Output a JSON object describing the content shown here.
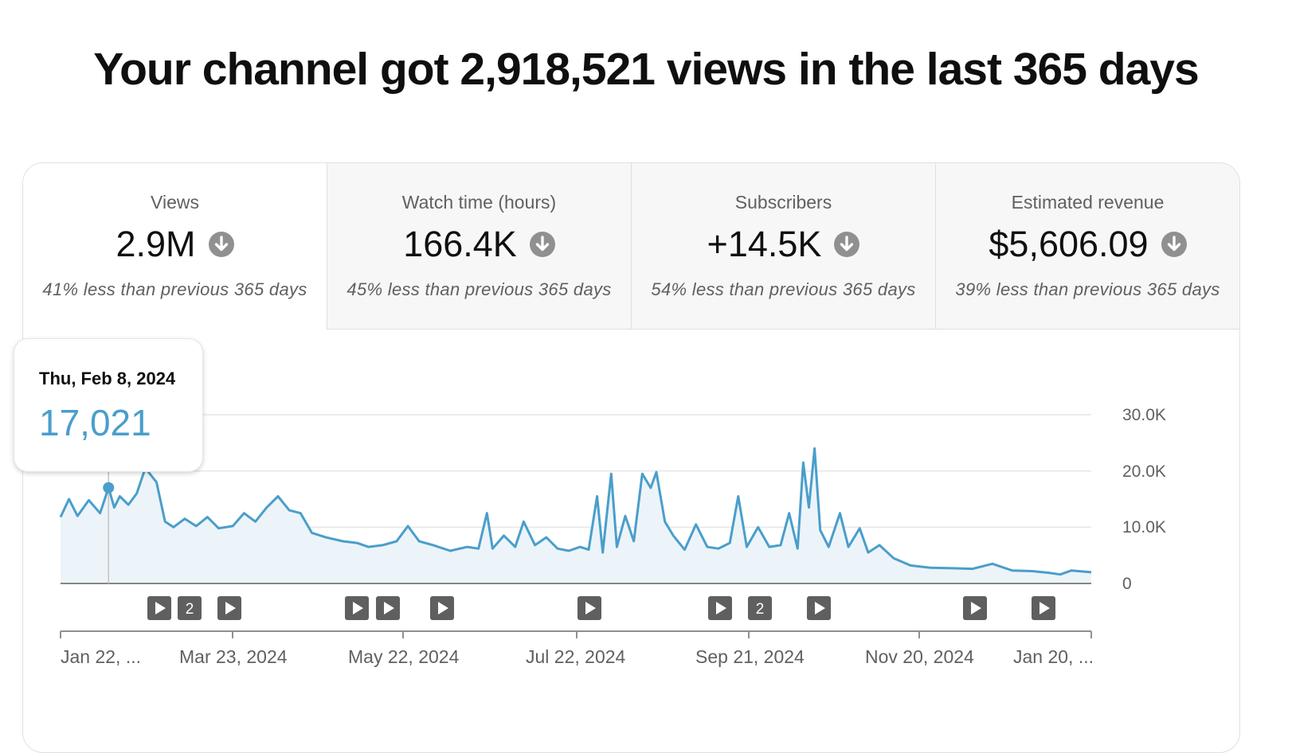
{
  "headline": "Your channel got 2,918,521 views in the last 365 days",
  "tabs": [
    {
      "title": "Views",
      "value": "2.9M",
      "sub": "41% less than previous 365 days",
      "active": true
    },
    {
      "title": "Watch time (hours)",
      "value": "166.4K",
      "sub": "45% less than previous 365 days",
      "active": false
    },
    {
      "title": "Subscribers",
      "value": "+14.5K",
      "sub": "54% less than previous 365 days",
      "active": false
    },
    {
      "title": "Estimated revenue",
      "value": "$5,606.09",
      "sub": "39% less than previous 365 days",
      "active": false
    }
  ],
  "tooltip": {
    "date": "Thu, Feb 8, 2024",
    "value": "17,021"
  },
  "y_labels": [
    "30.0K",
    "20.0K",
    "10.0K",
    "0"
  ],
  "x_labels": [
    "Jan 22, ...",
    "Mar 23, 2024",
    "May 22, 2024",
    "Jul 22, 2024",
    "Sep 21, 2024",
    "Nov 20, 2024",
    "Jan 20, ..."
  ],
  "markers": [
    {
      "label": "",
      "kind": "play"
    },
    {
      "label": "2",
      "kind": "count"
    },
    {
      "label": "",
      "kind": "play"
    },
    {
      "label": "",
      "kind": "play"
    },
    {
      "label": "",
      "kind": "play"
    },
    {
      "label": "",
      "kind": "play"
    },
    {
      "label": "",
      "kind": "play"
    },
    {
      "label": "",
      "kind": "play"
    },
    {
      "label": "2",
      "kind": "count"
    },
    {
      "label": "",
      "kind": "play"
    },
    {
      "label": "",
      "kind": "play"
    },
    {
      "label": "",
      "kind": "play"
    }
  ],
  "colors": {
    "line": "#4a9ecb",
    "fill": "#ecf4f9",
    "grid": "#e6e6e6",
    "marker": "#5f5f5f",
    "arrow": "#909090"
  },
  "chart_data": {
    "type": "area",
    "title": "",
    "xlabel": "",
    "ylabel": "",
    "ylim": [
      0,
      30000
    ],
    "x_range": [
      "2024-01-22",
      "2025-01-21"
    ],
    "highlight": {
      "date": "2024-02-08",
      "value": 17021
    },
    "points": [
      [
        "2024-01-22",
        11800
      ],
      [
        "2024-01-25",
        15000
      ],
      [
        "2024-01-28",
        12000
      ],
      [
        "2024-02-01",
        14800
      ],
      [
        "2024-02-05",
        12500
      ],
      [
        "2024-02-08",
        17021
      ],
      [
        "2024-02-10",
        13500
      ],
      [
        "2024-02-12",
        15500
      ],
      [
        "2024-02-15",
        14000
      ],
      [
        "2024-02-18",
        16000
      ],
      [
        "2024-02-21",
        20500
      ],
      [
        "2024-02-25",
        18000
      ],
      [
        "2024-02-28",
        11000
      ],
      [
        "2024-03-02",
        10000
      ],
      [
        "2024-03-06",
        11500
      ],
      [
        "2024-03-10",
        10200
      ],
      [
        "2024-03-14",
        11800
      ],
      [
        "2024-03-18",
        9800
      ],
      [
        "2024-03-23",
        10200
      ],
      [
        "2024-03-27",
        12500
      ],
      [
        "2024-03-31",
        11000
      ],
      [
        "2024-04-04",
        13500
      ],
      [
        "2024-04-08",
        15500
      ],
      [
        "2024-04-12",
        13000
      ],
      [
        "2024-04-16",
        12500
      ],
      [
        "2024-04-20",
        9000
      ],
      [
        "2024-04-25",
        8200
      ],
      [
        "2024-05-01",
        7500
      ],
      [
        "2024-05-06",
        7200
      ],
      [
        "2024-05-10",
        6500
      ],
      [
        "2024-05-15",
        6800
      ],
      [
        "2024-05-20",
        7500
      ],
      [
        "2024-05-24",
        10200
      ],
      [
        "2024-05-28",
        7500
      ],
      [
        "2024-06-02",
        6800
      ],
      [
        "2024-06-08",
        5800
      ],
      [
        "2024-06-14",
        6500
      ],
      [
        "2024-06-18",
        6200
      ],
      [
        "2024-06-21",
        12500
      ],
      [
        "2024-06-23",
        6200
      ],
      [
        "2024-06-27",
        8500
      ],
      [
        "2024-07-01",
        6500
      ],
      [
        "2024-07-04",
        11000
      ],
      [
        "2024-07-08",
        6800
      ],
      [
        "2024-07-12",
        8200
      ],
      [
        "2024-07-16",
        6200
      ],
      [
        "2024-07-20",
        5800
      ],
      [
        "2024-07-24",
        6500
      ],
      [
        "2024-07-27",
        6000
      ],
      [
        "2024-07-30",
        15500
      ],
      [
        "2024-08-01",
        5500
      ],
      [
        "2024-08-04",
        19500
      ],
      [
        "2024-08-06",
        6500
      ],
      [
        "2024-08-09",
        12000
      ],
      [
        "2024-08-12",
        7500
      ],
      [
        "2024-08-15",
        19500
      ],
      [
        "2024-08-18",
        17000
      ],
      [
        "2024-08-20",
        19800
      ],
      [
        "2024-08-23",
        11000
      ],
      [
        "2024-08-26",
        8500
      ],
      [
        "2024-08-30",
        6000
      ],
      [
        "2024-09-03",
        10500
      ],
      [
        "2024-09-07",
        6500
      ],
      [
        "2024-09-11",
        6200
      ],
      [
        "2024-09-15",
        7200
      ],
      [
        "2024-09-18",
        15500
      ],
      [
        "2024-09-21",
        6500
      ],
      [
        "2024-09-25",
        10000
      ],
      [
        "2024-09-29",
        6500
      ],
      [
        "2024-10-03",
        6800
      ],
      [
        "2024-10-06",
        12500
      ],
      [
        "2024-10-09",
        6200
      ],
      [
        "2024-10-11",
        21500
      ],
      [
        "2024-10-13",
        13500
      ],
      [
        "2024-10-15",
        24000
      ],
      [
        "2024-10-17",
        9500
      ],
      [
        "2024-10-20",
        6500
      ],
      [
        "2024-10-24",
        12500
      ],
      [
        "2024-10-27",
        6500
      ],
      [
        "2024-10-31",
        9800
      ],
      [
        "2024-11-03",
        5500
      ],
      [
        "2024-11-07",
        6800
      ],
      [
        "2024-11-12",
        4500
      ],
      [
        "2024-11-18",
        3200
      ],
      [
        "2024-11-25",
        2800
      ],
      [
        "2024-12-03",
        2700
      ],
      [
        "2024-12-10",
        2600
      ],
      [
        "2024-12-17",
        3500
      ],
      [
        "2024-12-24",
        2300
      ],
      [
        "2024-12-31",
        2200
      ],
      [
        "2025-01-06",
        1900
      ],
      [
        "2025-01-10",
        1600
      ],
      [
        "2025-01-14",
        2300
      ],
      [
        "2025-01-21",
        2000
      ]
    ]
  }
}
